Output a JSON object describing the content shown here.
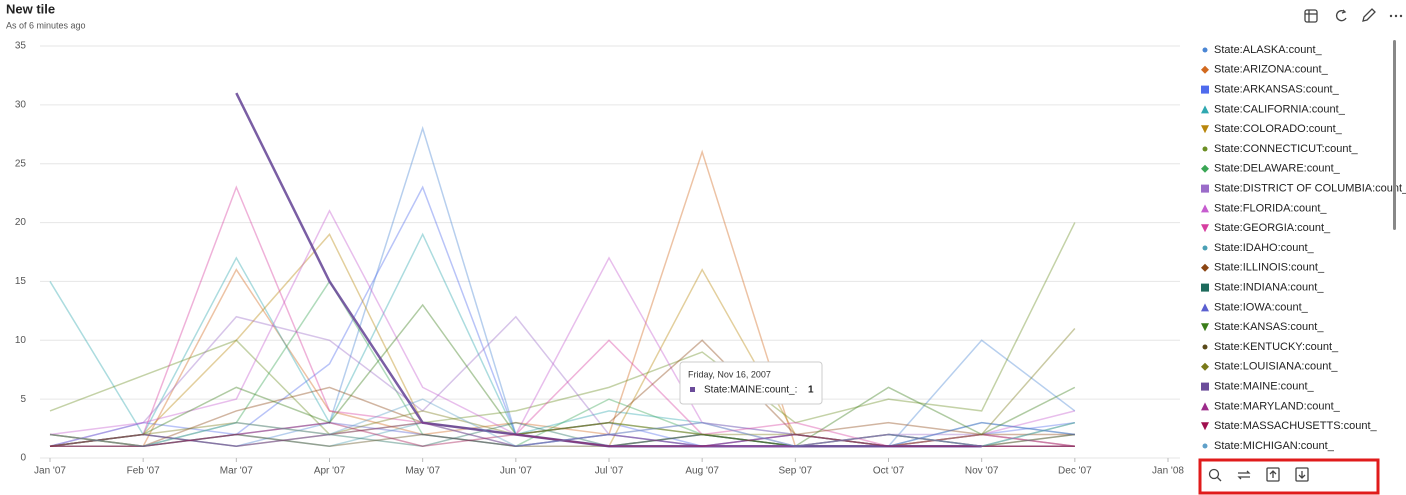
{
  "header": {
    "title": "New tile",
    "subtitle": "As of 6 minutes ago"
  },
  "chart_data": {
    "type": "line",
    "x": [
      "2007-01",
      "2007-02",
      "2007-03",
      "2007-04",
      "2007-05",
      "2007-06",
      "2007-07",
      "2007-08",
      "2007-09",
      "2007-10",
      "2007-11",
      "2007-12"
    ],
    "xticks": [
      {
        "value": "2007-01",
        "label": "Jan '07"
      },
      {
        "value": "2007-02",
        "label": "Feb '07"
      },
      {
        "value": "2007-03",
        "label": "Mar '07"
      },
      {
        "value": "2007-04",
        "label": "Apr '07"
      },
      {
        "value": "2007-05",
        "label": "May '07"
      },
      {
        "value": "2007-06",
        "label": "Jun '07"
      },
      {
        "value": "2007-07",
        "label": "Jul '07"
      },
      {
        "value": "2007-08",
        "label": "Aug '07"
      },
      {
        "value": "2007-09",
        "label": "Sep '07"
      },
      {
        "value": "2007-10",
        "label": "Oct '07"
      },
      {
        "value": "2007-11",
        "label": "Nov '07"
      },
      {
        "value": "2007-12",
        "label": "Dec '07"
      },
      {
        "value": "2008-01",
        "label": "Jan '08"
      }
    ],
    "ylim": [
      0,
      35
    ],
    "yticks": [
      0,
      5,
      10,
      15,
      20,
      25,
      30,
      35
    ],
    "grid": true,
    "series": [
      {
        "name": "State:ALASKA:count_",
        "color": "#4a86d4",
        "marker": "circle",
        "values": [
          1,
          2,
          1,
          3,
          28,
          2,
          1,
          2,
          1,
          1,
          10,
          4
        ]
      },
      {
        "name": "State:ARIZONA:count_",
        "color": "#d2691e",
        "marker": "diamond",
        "values": [
          2,
          1,
          16,
          4,
          2,
          3,
          2,
          26,
          1,
          2,
          1,
          2
        ]
      },
      {
        "name": "State:ARKANSAS:count_",
        "color": "#4f6bed",
        "marker": "square",
        "values": [
          1,
          3,
          2,
          8,
          23,
          2,
          3,
          1,
          2,
          1,
          2,
          3
        ]
      },
      {
        "name": "State:CALIFORNIA:count_",
        "color": "#2fa8b0",
        "marker": "triangle",
        "values": [
          15,
          2,
          17,
          3,
          19,
          2,
          4,
          3,
          2,
          1,
          3,
          2
        ]
      },
      {
        "name": "State:COLORADO:count_",
        "color": "#b8860b",
        "marker": "triangle-down",
        "values": [
          1,
          2,
          10,
          19,
          3,
          2,
          1,
          16,
          2,
          1,
          2,
          1
        ]
      },
      {
        "name": "State:CONNECTICUT:count_",
        "color": "#6b8e23",
        "marker": "circle",
        "values": [
          4,
          7,
          10,
          2,
          3,
          4,
          6,
          9,
          3,
          5,
          4,
          20
        ]
      },
      {
        "name": "State:DELAWARE:count_",
        "color": "#3aa655",
        "marker": "diamond",
        "values": [
          2,
          1,
          3,
          15,
          2,
          1,
          5,
          2,
          1,
          2,
          1,
          3
        ]
      },
      {
        "name": "State:DISTRICT OF COLUMBIA:count_",
        "color": "#9b6cc9",
        "marker": "square",
        "values": [
          1,
          3,
          12,
          10,
          4,
          12,
          2,
          3,
          1,
          2,
          2,
          1
        ]
      },
      {
        "name": "State:FLORIDA:count_",
        "color": "#c65dcf",
        "marker": "triangle",
        "values": [
          2,
          3,
          5,
          21,
          6,
          2,
          17,
          3,
          2,
          1,
          2,
          4
        ]
      },
      {
        "name": "State:GEORGIA:count_",
        "color": "#d63fa0",
        "marker": "triangle-down",
        "values": [
          1,
          2,
          23,
          4,
          3,
          2,
          10,
          2,
          3,
          1,
          2,
          1
        ]
      },
      {
        "name": "State:IDAHO:count_",
        "color": "#4aa0b5",
        "marker": "circle",
        "values": [
          null,
          1,
          2,
          1,
          3,
          1,
          2,
          1,
          null,
          2,
          1,
          1
        ]
      },
      {
        "name": "State:ILLINOIS:count_",
        "color": "#8b4513",
        "marker": "diamond",
        "values": [
          2,
          1,
          4,
          6,
          3,
          2,
          3,
          10,
          2,
          3,
          2,
          2
        ]
      },
      {
        "name": "State:INDIANA:count_",
        "color": "#1e6b5c",
        "marker": "square",
        "values": [
          1,
          2,
          1,
          2,
          1,
          3,
          1,
          2,
          1,
          1,
          1,
          2
        ]
      },
      {
        "name": "State:IOWA:count_",
        "color": "#5a5fd0",
        "marker": "triangle",
        "values": [
          1,
          1,
          2,
          3,
          2,
          1,
          2,
          1,
          2,
          1,
          3,
          2
        ]
      },
      {
        "name": "State:KANSAS:count_",
        "color": "#3a7d1a",
        "marker": "triangle-down",
        "values": [
          1,
          2,
          6,
          3,
          13,
          2,
          3,
          2,
          1,
          6,
          2,
          6
        ]
      },
      {
        "name": "State:KENTUCKY:count_",
        "color": "#5a4a1a",
        "marker": "circle",
        "values": [
          1,
          1,
          2,
          1,
          2,
          1,
          1,
          2,
          1,
          1,
          1,
          1
        ]
      },
      {
        "name": "State:LOUISIANA:count_",
        "color": "#7a7a1a",
        "marker": "diamond",
        "values": [
          1,
          2,
          3,
          2,
          4,
          2,
          3,
          2,
          2,
          1,
          2,
          11
        ]
      },
      {
        "name": "State:MAINE:count_",
        "color": "#6b4c9a",
        "marker": "square",
        "values": [
          null,
          null,
          31,
          15,
          3,
          2,
          1,
          1,
          1,
          1,
          1,
          null
        ]
      },
      {
        "name": "State:MARYLAND:count_",
        "color": "#9c2b8a",
        "marker": "triangle",
        "values": [
          1,
          2,
          1,
          2,
          3,
          1,
          2,
          1,
          1,
          2,
          1,
          1
        ]
      },
      {
        "name": "State:MASSACHUSETTS:count_",
        "color": "#a0104e",
        "marker": "triangle-down",
        "values": [
          1,
          1,
          2,
          3,
          1,
          2,
          1,
          1,
          2,
          1,
          1,
          1
        ]
      },
      {
        "name": "State:MICHIGAN:count_",
        "color": "#5fa0c9",
        "marker": "circle",
        "values": [
          2,
          1,
          3,
          2,
          5,
          1,
          2,
          3,
          1,
          2,
          1,
          3
        ]
      }
    ],
    "tooltip": {
      "date": "Friday, Nov 16, 2007",
      "series": "State:MAINE:count_:",
      "value": 1
    }
  }
}
